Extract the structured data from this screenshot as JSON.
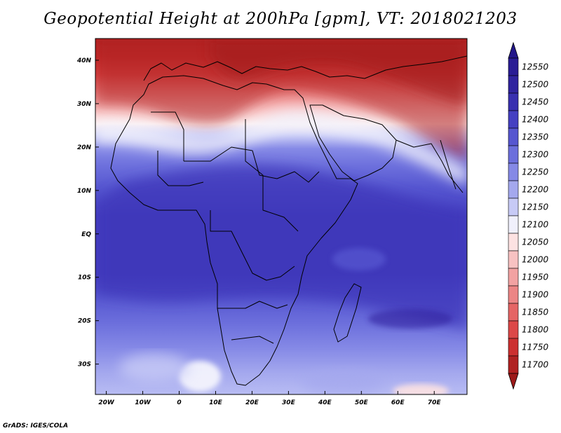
{
  "title": "Geopotential Height at 200hPa [gpm], VT: 2018021203",
  "credit": "GrADS: IGES/COLA",
  "map": {
    "lon_range": [
      -23,
      79
    ],
    "lat_range": [
      -37,
      45
    ],
    "lon_ticks": [
      {
        "value": -20,
        "label": "20W"
      },
      {
        "value": -10,
        "label": "10W"
      },
      {
        "value": 0,
        "label": "0"
      },
      {
        "value": 10,
        "label": "10E"
      },
      {
        "value": 20,
        "label": "20E"
      },
      {
        "value": 30,
        "label": "30E"
      },
      {
        "value": 40,
        "label": "40E"
      },
      {
        "value": 50,
        "label": "50E"
      },
      {
        "value": 60,
        "label": "60E"
      },
      {
        "value": 70,
        "label": "70E"
      }
    ],
    "lat_ticks": [
      {
        "value": 40,
        "label": "40N"
      },
      {
        "value": 30,
        "label": "30N"
      },
      {
        "value": 20,
        "label": "20N"
      },
      {
        "value": 10,
        "label": "10N"
      },
      {
        "value": 0,
        "label": "EQ"
      },
      {
        "value": -10,
        "label": "10S"
      },
      {
        "value": -20,
        "label": "20S"
      },
      {
        "value": -30,
        "label": "30S"
      }
    ]
  },
  "colorbar": {
    "levels": [
      {
        "label": "12550",
        "color": "#2a1d95"
      },
      {
        "label": "12500",
        "color": "#30249f"
      },
      {
        "label": "12450",
        "color": "#3930b0"
      },
      {
        "label": "12400",
        "color": "#4540c2"
      },
      {
        "label": "12350",
        "color": "#5656d0"
      },
      {
        "label": "12300",
        "color": "#6c6fdc"
      },
      {
        "label": "12250",
        "color": "#8589e6"
      },
      {
        "label": "12200",
        "color": "#a4a8ee"
      },
      {
        "label": "12150",
        "color": "#c7caf6"
      },
      {
        "label": "12100",
        "color": "#f0f0fc"
      },
      {
        "label": "12050",
        "color": "#fde2e2"
      },
      {
        "label": "12000",
        "color": "#f8c2c2"
      },
      {
        "label": "11950",
        "color": "#f2a2a2"
      },
      {
        "label": "11900",
        "color": "#ec8585"
      },
      {
        "label": "11850",
        "color": "#e56565"
      },
      {
        "label": "11800",
        "color": "#dc4848"
      },
      {
        "label": "11750",
        "color": "#cc3030"
      },
      {
        "label": "11700",
        "color": "#b02222"
      }
    ],
    "top_arrow_color": "#23178a",
    "bottom_arrow_color": "#9c1a1a"
  }
}
